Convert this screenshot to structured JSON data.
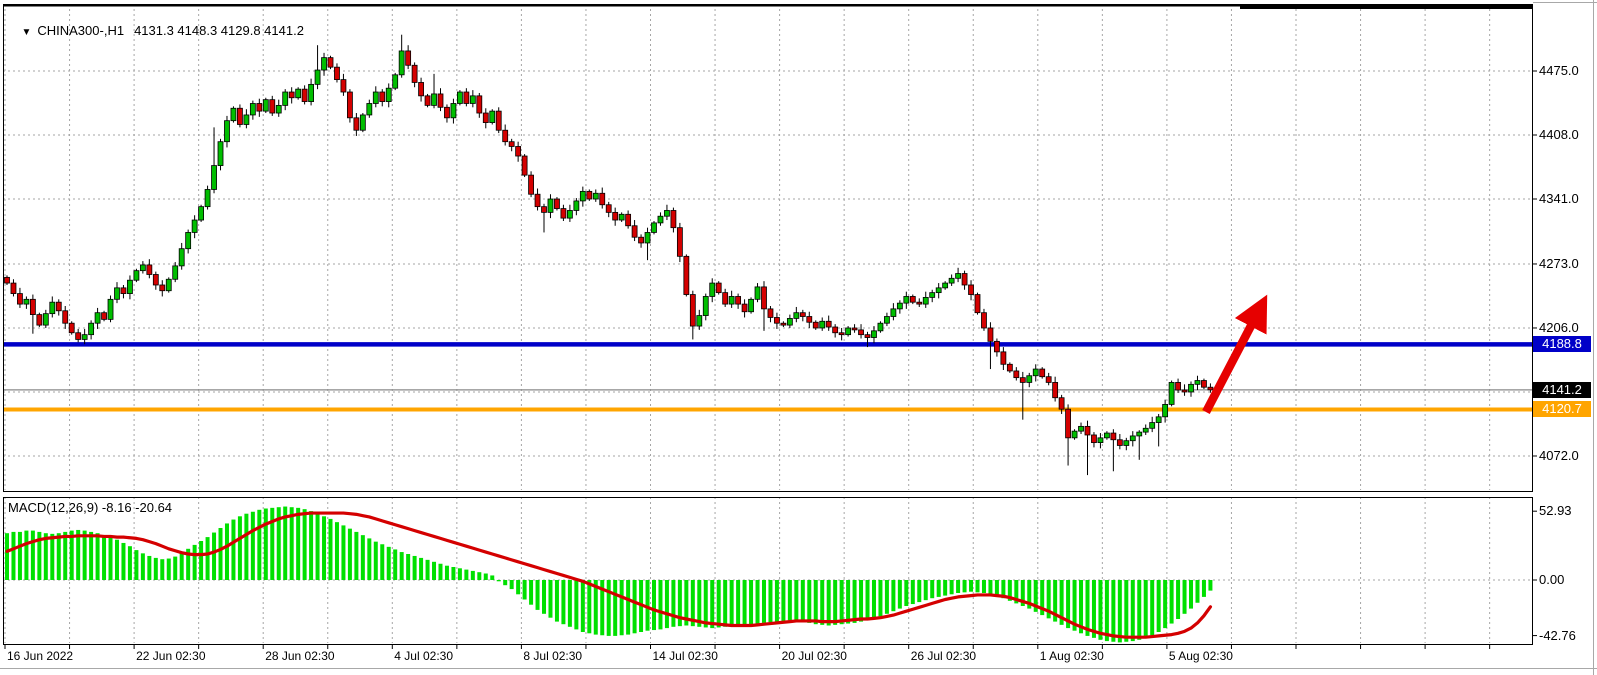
{
  "header": {
    "dropdown_icon": "▼",
    "symbol_period": "CHINA300-,H1",
    "ohlc_values": "4131.3 4148.3 4129.8 4141.2"
  },
  "colors": {
    "bull": "#00be00",
    "bear": "#d40000",
    "wick": "#000000",
    "macd_hist": "#00e000",
    "macd_signal": "#d40000",
    "level_blue": "#0000c8",
    "level_orange": "#ffa500",
    "last_price_badge": "#000000",
    "arrow": "#e60000",
    "grid": "#a6a6a6"
  },
  "price_axis": {
    "labels": [
      "4475.0",
      "4408.0",
      "4341.0",
      "4273.0",
      "4206.0",
      "4072.0"
    ],
    "values": [
      4475,
      4408,
      4341,
      4273,
      4206,
      4072
    ],
    "badges": [
      {
        "text": "4188.8",
        "value": 4188.8,
        "bg": "#0000c8"
      },
      {
        "text": "4141.2",
        "value": 4141.2,
        "bg": "#000000"
      },
      {
        "text": "4120.7",
        "value": 4120.7,
        "bg": "#ffa500"
      }
    ]
  },
  "macd_axis": {
    "labels": [
      "52.93",
      "0.00",
      "-42.76"
    ],
    "values": [
      52.93,
      0,
      -42.76
    ]
  },
  "time_axis": {
    "labels": [
      "16 Jun 2022",
      "22 Jun 02:30",
      "28 Jun 02:30",
      "4 Jul 02:30",
      "8 Jul 02:30",
      "14 Jul 02:30",
      "20 Jul 02:30",
      "26 Jul 02:30",
      "1 Aug 02:30",
      "5 Aug 02:30"
    ]
  },
  "indicator_label": "MACD(12,26,9) -8.16 -20.64",
  "chart_data": [
    {
      "type": "candlestick",
      "title": "CHINA300-,H1",
      "timeframe": "H1",
      "grid": "dashed",
      "ylim": [
        4040,
        4545
      ],
      "y_ticks": [
        4475,
        4408,
        4341,
        4273,
        4206,
        4139,
        4072
      ],
      "x_tick_labels": [
        "16 Jun 2022",
        "22 Jun 02:30",
        "28 Jun 02:30",
        "4 Jul 02:30",
        "8 Jul 02:30",
        "14 Jul 02:30",
        "20 Jul 02:30",
        "26 Jul 02:30",
        "1 Aug 02:30",
        "5 Aug 02:30"
      ],
      "first_open": 4259,
      "closes": [
        4253,
        4242,
        4231,
        4236,
        4220,
        4209,
        4221,
        4233,
        4224,
        4211,
        4201,
        4194,
        4199,
        4211,
        4222,
        4215,
        4236,
        4248,
        4242,
        4256,
        4266,
        4272,
        4262,
        4251,
        4245,
        4257,
        4271,
        4289,
        4306,
        4319,
        4333,
        4351,
        4376,
        4401,
        4423,
        4436,
        4419,
        4429,
        4441,
        4433,
        4445,
        4431,
        4439,
        4453,
        4447,
        4456,
        4443,
        4461,
        4476,
        4489,
        4479,
        4466,
        4453,
        4426,
        4413,
        4429,
        4441,
        4453,
        4443,
        4457,
        4471,
        4496,
        4481,
        4463,
        4449,
        4439,
        4451,
        4437,
        4426,
        4441,
        4453,
        4441,
        4449,
        4431,
        4421,
        4433,
        4413,
        4401,
        4396,
        4386,
        4366,
        4346,
        4333,
        4327,
        4341,
        4331,
        4321,
        4329,
        4339,
        4349,
        4341,
        4347,
        4335,
        4327,
        4319,
        4325,
        4313,
        4301,
        4295,
        4306,
        4316,
        4323,
        4329,
        4311,
        4281,
        4241,
        4208,
        4219,
        4239,
        4253,
        4243,
        4231,
        4239,
        4231,
        4223,
        4236,
        4249,
        4226,
        4217,
        4211,
        4209,
        4216,
        4222,
        4218,
        4212,
        4206,
        4213,
        4207,
        4201,
        4199,
        4206,
        4204,
        4199,
        4196,
        4203,
        4211,
        4218,
        4226,
        4232,
        4239,
        4233,
        4231,
        4238,
        4243,
        4248,
        4253,
        4258,
        4263,
        4251,
        4241,
        4222,
        4206,
        4192,
        4181,
        4168,
        4161,
        4154,
        4149,
        4156,
        4163,
        4155,
        4149,
        4133,
        4121,
        4091,
        4098,
        4103,
        4094,
        4086,
        4091,
        4096,
        4089,
        4083,
        4088,
        4093,
        4097,
        4101,
        4107,
        4113,
        4126,
        4149,
        4141,
        4139,
        4147,
        4151,
        4144,
        4141.2
      ],
      "wick_spikes": [
        {
          "i": 4,
          "low": 4200
        },
        {
          "i": 12,
          "low": 4189
        },
        {
          "i": 32,
          "high": 4416
        },
        {
          "i": 48,
          "high": 4502
        },
        {
          "i": 61,
          "high": 4513
        },
        {
          "i": 66,
          "high": 4472
        },
        {
          "i": 83,
          "low": 4306
        },
        {
          "i": 99,
          "low": 4277
        },
        {
          "i": 106,
          "low": 4194
        },
        {
          "i": 117,
          "low": 4203
        },
        {
          "i": 133,
          "low": 4186
        },
        {
          "i": 152,
          "low": 4163
        },
        {
          "i": 157,
          "low": 4110
        },
        {
          "i": 164,
          "low": 4062
        },
        {
          "i": 167,
          "low": 4052
        },
        {
          "i": 171,
          "low": 4056
        },
        {
          "i": 175,
          "low": 4068
        },
        {
          "i": 178,
          "low": 4082
        }
      ],
      "levels": {
        "resistance_blue": 4188.8,
        "support_orange": 4120.7,
        "last_price_gray": 4141.2
      },
      "annotation": {
        "type": "arrow-up-right",
        "color": "#e60000",
        "from_price": 4120,
        "to_price": 4225
      }
    },
    {
      "type": "macd",
      "label": "MACD(12,26,9)",
      "current_values": [
        -8.16,
        -20.64
      ],
      "y_ticks": [
        52.93,
        0,
        -42.76
      ],
      "grid": "zero-line-dashed",
      "histogram": [
        36,
        37,
        37,
        38,
        38,
        37,
        36,
        35.5,
        36,
        37,
        38,
        38.5,
        38,
        37,
        36,
        34.5,
        33,
        31,
        28.5,
        26,
        23,
        20.5,
        18.5,
        17,
        16,
        16.5,
        18,
        21,
        24,
        27,
        30,
        33,
        36.5,
        40,
        43.5,
        46.5,
        49,
        51,
        52.5,
        54,
        55,
        55.5,
        56,
        56.5,
        56,
        55.5,
        54.5,
        53,
        51,
        49,
        47,
        44.5,
        42,
        39.5,
        37,
        34.5,
        32,
        29.5,
        27.5,
        25.5,
        23.5,
        21.5,
        20,
        18.5,
        17,
        15.5,
        14,
        12.5,
        11,
        10,
        9,
        8,
        7,
        6,
        5,
        3.5,
        -1,
        -4,
        -7,
        -11,
        -15,
        -19,
        -23,
        -26,
        -29,
        -32,
        -34,
        -36,
        -38,
        -40,
        -41,
        -42,
        -42.5,
        -43,
        -43,
        -42.5,
        -42,
        -41,
        -40,
        -39,
        -38.5,
        -38,
        -37,
        -36,
        -35.5,
        -35,
        -35.5,
        -36,
        -36.5,
        -37,
        -36.5,
        -36,
        -35.5,
        -35,
        -34.5,
        -34,
        -33.5,
        -33,
        -32.5,
        -32,
        -31.5,
        -31,
        -31.5,
        -32,
        -33,
        -34,
        -34.5,
        -35,
        -34.5,
        -34,
        -33.5,
        -33,
        -32,
        -31,
        -29.5,
        -28,
        -26,
        -24,
        -22,
        -20,
        -18.5,
        -17,
        -15.5,
        -14,
        -13,
        -12,
        -11,
        -10,
        -9.5,
        -9,
        -9.5,
        -10,
        -11,
        -12.5,
        -14,
        -16,
        -18,
        -20,
        -22,
        -24.5,
        -27,
        -29.5,
        -32,
        -34.5,
        -37,
        -39,
        -41,
        -43,
        -44.5,
        -46,
        -47,
        -47.5,
        -48,
        -47.5,
        -47,
        -46,
        -44.5,
        -42.5,
        -40,
        -37,
        -33.5,
        -30,
        -26,
        -22,
        -17.5,
        -13,
        -8.16
      ],
      "signal": [
        22,
        24,
        26,
        28,
        29.5,
        31,
        32,
        32.5,
        33,
        33.5,
        33.5,
        34,
        34,
        34,
        34,
        33.5,
        33.5,
        33,
        33,
        32.5,
        32,
        31,
        29.5,
        28,
        26,
        24,
        22.5,
        21,
        20,
        19.5,
        19.5,
        20,
        21.5,
        23.5,
        26,
        29,
        32,
        35,
        38,
        40.5,
        43,
        45,
        47,
        48.5,
        49.5,
        50.5,
        51,
        51.5,
        51.5,
        51.5,
        51.5,
        51.5,
        51.5,
        51,
        50.5,
        49.5,
        48.5,
        47,
        45.5,
        44,
        42.5,
        41,
        39.5,
        38,
        36.5,
        35,
        33.5,
        32,
        30.5,
        29,
        27.5,
        26,
        24.5,
        23,
        21.5,
        20,
        18.5,
        17,
        15.5,
        14,
        12.5,
        11,
        9.5,
        8,
        6.5,
        5,
        3.5,
        2,
        0.5,
        -1,
        -3,
        -5,
        -7,
        -9,
        -11,
        -13,
        -15,
        -17,
        -19,
        -21,
        -23,
        -24.5,
        -26,
        -27.5,
        -29,
        -30,
        -31,
        -32,
        -33,
        -33.5,
        -34,
        -34.5,
        -35,
        -35,
        -35,
        -35,
        -34.5,
        -34,
        -33.5,
        -33,
        -32.5,
        -32,
        -31.5,
        -31.5,
        -31.5,
        -31.5,
        -32,
        -32,
        -32,
        -31.5,
        -31,
        -30.5,
        -30,
        -30,
        -29.5,
        -29,
        -28,
        -27,
        -25.5,
        -24,
        -22.5,
        -21,
        -19.5,
        -18,
        -16.5,
        -15,
        -14,
        -13,
        -12.5,
        -12,
        -11.5,
        -11.5,
        -11.5,
        -12,
        -12.5,
        -13.5,
        -15,
        -16.5,
        -18,
        -20,
        -22,
        -24,
        -26.5,
        -29,
        -31.5,
        -34,
        -36,
        -38,
        -39.5,
        -41,
        -42,
        -43,
        -43.5,
        -44,
        -44,
        -44,
        -44,
        -43.5,
        -43,
        -42.5,
        -42,
        -41,
        -39.5,
        -37,
        -33,
        -27.5,
        -20.64
      ]
    }
  ]
}
